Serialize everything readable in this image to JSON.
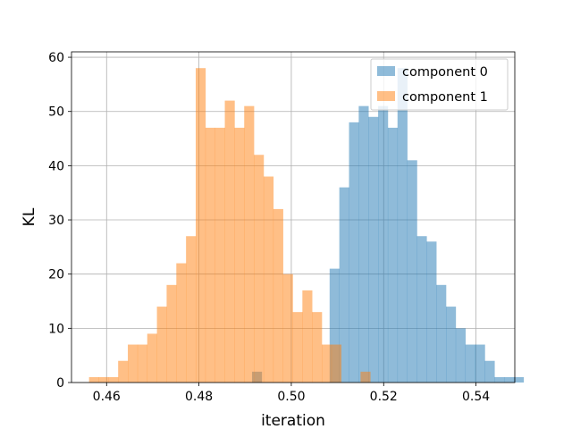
{
  "chart_data": {
    "type": "histogram",
    "xlabel": "iteration",
    "ylabel": "KL",
    "xlim": [
      0.4524,
      0.5484
    ],
    "ylim": [
      0,
      61
    ],
    "xticks": [
      "0.46",
      "0.48",
      "0.50",
      "0.52",
      "0.54"
    ],
    "yticks": [
      "0",
      "10",
      "20",
      "30",
      "40",
      "50",
      "60"
    ],
    "grid": true,
    "legend_position": "top-right",
    "series": [
      {
        "name": "component 0",
        "color": "#1f77b4",
        "alpha": 0.5,
        "bin_start": 0.4915,
        "bin_width": 0.0021,
        "counts": [
          2,
          0,
          0,
          0,
          0,
          0,
          0,
          0,
          21,
          36,
          48,
          51,
          49,
          51,
          47,
          58,
          41,
          27,
          26,
          18,
          14,
          10,
          7,
          7,
          4,
          1,
          1,
          1
        ]
      },
      {
        "name": "component 1",
        "color": "#ff7f0e",
        "alpha": 0.5,
        "bin_start": 0.4562,
        "bin_width": 0.0021,
        "counts": [
          1,
          1,
          1,
          4,
          7,
          7,
          9,
          14,
          18,
          22,
          27,
          58,
          47,
          47,
          52,
          47,
          51,
          42,
          38,
          32,
          20,
          13,
          17,
          13,
          7,
          7,
          0,
          0,
          2
        ]
      }
    ]
  }
}
